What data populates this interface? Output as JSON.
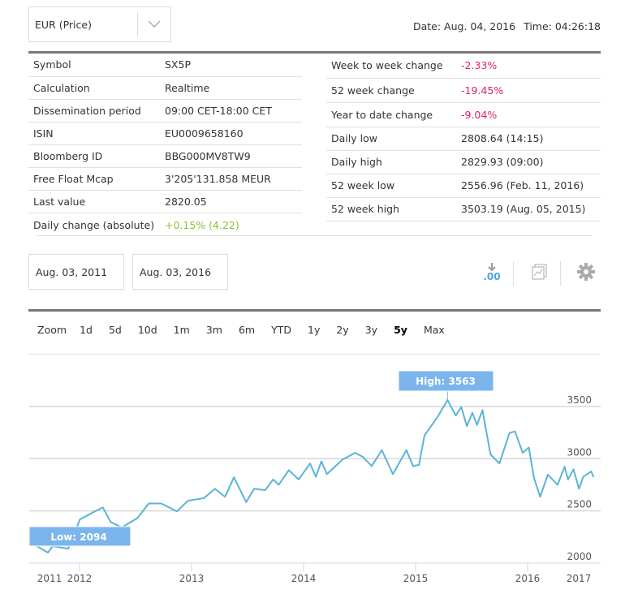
{
  "currency_select": {
    "value": "EUR (Price)",
    "icon": "chevron-down-icon"
  },
  "datetime": {
    "date": "Date: Aug. 04, 2016",
    "time": "Time: 04:26:18"
  },
  "left_table": [
    {
      "label": "Symbol",
      "value": "SX5P"
    },
    {
      "label": "Calculation",
      "value": "Realtime"
    },
    {
      "label": "Dissemination period",
      "value": "09:00 CET-18:00 CET"
    },
    {
      "label": "ISIN",
      "value": "EU0009658160"
    },
    {
      "label": "Bloomberg ID",
      "value": "BBG000MV8TW9"
    },
    {
      "label": "Free Float Mcap",
      "value": "3'205'131.858 MEUR"
    },
    {
      "label": "Last value",
      "value": "2820.05"
    },
    {
      "label": "Daily change (absolute)",
      "value": "+0.15% (4.22)",
      "status": "pos"
    }
  ],
  "right_table": [
    {
      "label": "Week to week change",
      "value": "-2.33%",
      "status": "neg"
    },
    {
      "label": "52 week change",
      "value": "-19.45%",
      "status": "neg"
    },
    {
      "label": "Year to date change",
      "value": "-9.04%",
      "status": "neg"
    },
    {
      "label": "Daily low",
      "value": "2808.64 (14:15)"
    },
    {
      "label": "Daily high",
      "value": "2829.93 (09:00)"
    },
    {
      "label": "52 week low",
      "value": "2556.96 (Feb. 11, 2016)"
    },
    {
      "label": "52 week high",
      "value": "3503.19 (Aug. 05, 2015)"
    }
  ],
  "date_range": {
    "from": "Aug. 03, 2011",
    "to": "Aug. 03, 2016"
  },
  "toolbar": {
    "icons": [
      "download-decimals-icon",
      "chart-export-icon",
      "gear-icon"
    ],
    "download_text": ".00"
  },
  "zoom": {
    "label": "Zoom",
    "options": [
      "1d",
      "5d",
      "10d",
      "1m",
      "3m",
      "6m",
      "YTD",
      "1y",
      "2y",
      "3y",
      "5y",
      "Max"
    ],
    "active": "5y"
  },
  "colors": {
    "line": "#5ab4d6",
    "flag": "#7cb5ec",
    "neg": "#e0206e",
    "pos": "#8fbf2f",
    "accent": "#4aa3df"
  },
  "chart_data": {
    "type": "line",
    "xlabel": "",
    "ylabel": "",
    "x_ticks": [
      "2011",
      "2012",
      "2013",
      "2014",
      "2015",
      "2016",
      "2017"
    ],
    "y_ticks": [
      2000,
      2500,
      3000,
      3500
    ],
    "ylim": [
      2000,
      4000
    ],
    "xlim": [
      "2011-08-03",
      "2016-08-03"
    ],
    "grid": true,
    "annotations": [
      {
        "text": "High: 3563",
        "value": 3563,
        "date": "2015-04-15"
      },
      {
        "text": "Low: 2094",
        "value": 2094,
        "date": "2011-09-20"
      }
    ],
    "points": [
      [
        "2011-08-15",
        2163
      ],
      [
        "2011-09-20",
        2100
      ],
      [
        "2011-10-05",
        2163
      ],
      [
        "2011-11-25",
        2138
      ],
      [
        "2012-01-02",
        2418
      ],
      [
        "2012-02-20",
        2495
      ],
      [
        "2012-03-17",
        2533
      ],
      [
        "2012-04-12",
        2393
      ],
      [
        "2012-05-18",
        2342
      ],
      [
        "2012-07-08",
        2431
      ],
      [
        "2012-08-14",
        2571
      ],
      [
        "2012-09-24",
        2571
      ],
      [
        "2012-11-14",
        2495
      ],
      [
        "2012-12-20",
        2597
      ],
      [
        "2013-02-10",
        2622
      ],
      [
        "2013-03-18",
        2712
      ],
      [
        "2013-04-20",
        2635
      ],
      [
        "2013-05-19",
        2821
      ],
      [
        "2013-06-28",
        2584
      ],
      [
        "2013-07-24",
        2712
      ],
      [
        "2013-08-29",
        2699
      ],
      [
        "2013-09-24",
        2801
      ],
      [
        "2013-10-12",
        2750
      ],
      [
        "2013-11-14",
        2890
      ],
      [
        "2013-12-16",
        2801
      ],
      [
        "2014-01-22",
        2954
      ],
      [
        "2014-02-10",
        2827
      ],
      [
        "2014-02-28",
        2974
      ],
      [
        "2014-03-18",
        2852
      ],
      [
        "2014-05-08",
        2992
      ],
      [
        "2014-06-18",
        3056
      ],
      [
        "2014-07-13",
        3018
      ],
      [
        "2014-08-11",
        2929
      ],
      [
        "2014-09-13",
        3082
      ],
      [
        "2014-10-19",
        2852
      ],
      [
        "2014-12-02",
        3082
      ],
      [
        "2014-12-24",
        2929
      ],
      [
        "2015-01-12",
        2941
      ],
      [
        "2015-01-30",
        3222
      ],
      [
        "2015-03-14",
        3401
      ],
      [
        "2015-04-15",
        3563
      ],
      [
        "2015-05-12",
        3413
      ],
      [
        "2015-05-30",
        3495
      ],
      [
        "2015-06-17",
        3311
      ],
      [
        "2015-07-05",
        3439
      ],
      [
        "2015-07-20",
        3324
      ],
      [
        "2015-08-07",
        3464
      ],
      [
        "2015-09-02",
        3043
      ],
      [
        "2015-10-01",
        2954
      ],
      [
        "2015-11-03",
        3247
      ],
      [
        "2015-11-21",
        3260
      ],
      [
        "2015-12-16",
        3056
      ],
      [
        "2016-01-05",
        3107
      ],
      [
        "2016-01-22",
        2814
      ],
      [
        "2016-02-11",
        2635
      ],
      [
        "2016-03-07",
        2847
      ],
      [
        "2016-04-08",
        2750
      ],
      [
        "2016-05-01",
        2923
      ],
      [
        "2016-05-12",
        2801
      ],
      [
        "2016-05-30",
        2898
      ],
      [
        "2016-06-17",
        2712
      ],
      [
        "2016-07-01",
        2827
      ],
      [
        "2016-07-27",
        2878
      ],
      [
        "2016-08-03",
        2827
      ]
    ]
  }
}
